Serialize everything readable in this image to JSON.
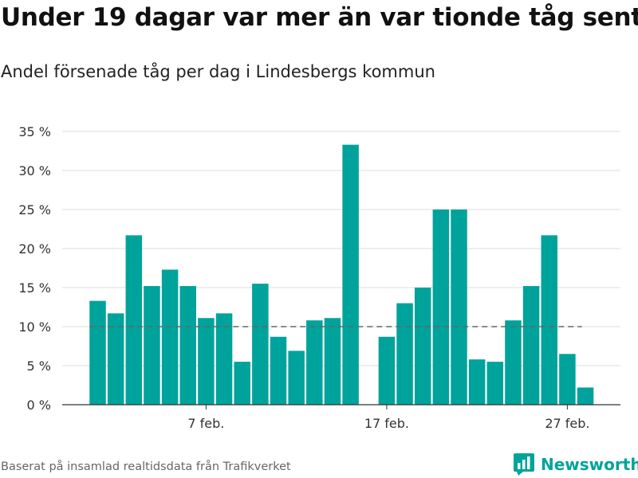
{
  "header": {
    "title": "Under 19 dagar var mer än var tionde tåg sent",
    "subtitle": "Andel försenade tåg per dag i Lindesbergs kommun"
  },
  "footer": {
    "source": "Baserat på insamlad realtidsdata från Trafikverket",
    "brand": "Newsworthy"
  },
  "colors": {
    "bar": "#00a39b",
    "reference_line": "#666666",
    "grid": "#dddddd"
  },
  "chart_data": {
    "type": "bar",
    "categories": [
      "1 feb.",
      "2 feb.",
      "3 feb.",
      "4 feb.",
      "5 feb.",
      "6 feb.",
      "7 feb.",
      "8 feb.",
      "9 feb.",
      "10 feb.",
      "11 feb.",
      "12 feb.",
      "13 feb.",
      "14 feb.",
      "15 feb.",
      "16 feb.",
      "17 feb.",
      "18 feb.",
      "19 feb.",
      "20 feb.",
      "21 feb.",
      "22 feb.",
      "23 feb.",
      "24 feb.",
      "25 feb.",
      "26 feb.",
      "27 feb.",
      "28 feb."
    ],
    "values": [
      13.3,
      11.7,
      21.7,
      15.2,
      17.3,
      15.2,
      11.1,
      11.7,
      5.5,
      15.5,
      8.7,
      6.9,
      10.8,
      11.1,
      33.3,
      null,
      8.7,
      13.0,
      15.0,
      25.0,
      25.0,
      5.8,
      5.5,
      10.8,
      15.2,
      21.7,
      6.5,
      2.2
    ],
    "reference_value": 10,
    "title": "",
    "xlabel": "",
    "ylabel": "",
    "ylim": [
      0,
      35
    ],
    "yticks": [
      0,
      5,
      10,
      15,
      20,
      25,
      30,
      35
    ],
    "ytick_labels": [
      "0 %",
      "5 %",
      "10 %",
      "15 %",
      "20 %",
      "25 %",
      "30 %",
      "35 %"
    ],
    "xtick_categories": [
      "7 feb.",
      "17 feb.",
      "27 feb."
    ],
    "xtick_labels": [
      "7 feb.",
      "17 feb.",
      "27 feb."
    ],
    "grid": true,
    "legend": "none"
  }
}
